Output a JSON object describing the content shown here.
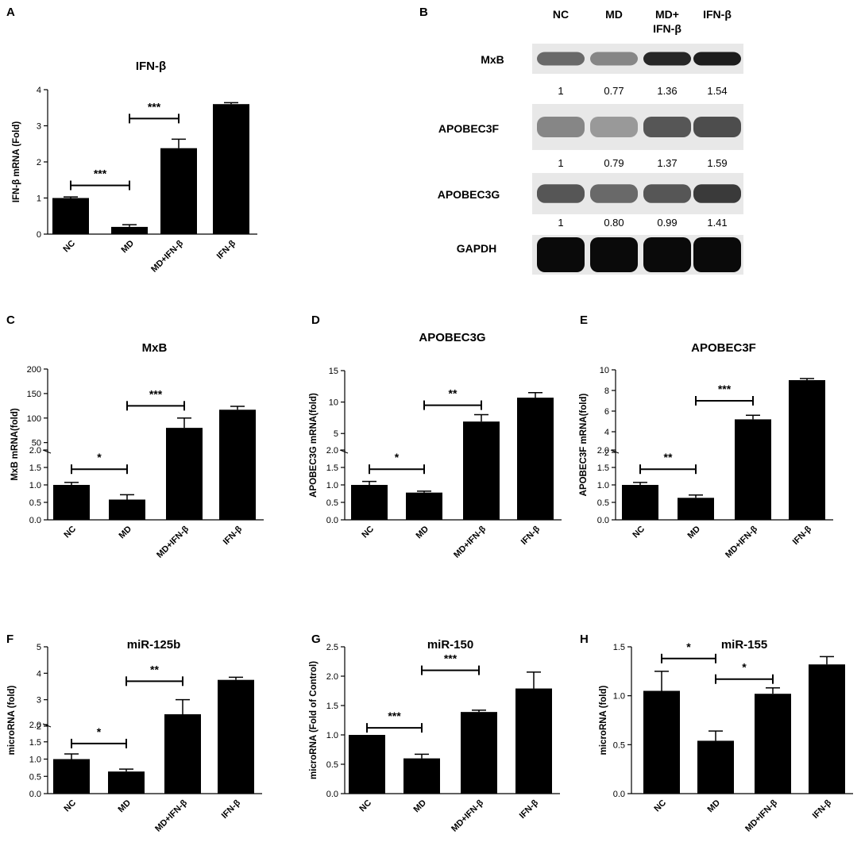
{
  "panels": [
    {
      "letter": "A",
      "title": "IFN-β",
      "ylabel": "IFN-β mRNA (Fold)"
    },
    {
      "letter": "B"
    },
    {
      "letter": "C",
      "title": "MxB",
      "ylabel": "MxB mRNA(fold)"
    },
    {
      "letter": "D",
      "title": "APOBEC3G",
      "ylabel": "APOBEC3G mRNA(fold)"
    },
    {
      "letter": "E",
      "title": "APOBEC3F",
      "ylabel": "APOBEC3F mRNA(fold)"
    },
    {
      "letter": "F",
      "title": "miR-125b",
      "ylabel": "microRNA (fold)"
    },
    {
      "letter": "G",
      "title": "miR-150",
      "ylabel": "microRNA (Fold of Control)"
    },
    {
      "letter": "H",
      "title": "miR-155",
      "ylabel": "microRNA (fold)"
    }
  ],
  "blot": {
    "lanes": [
      "NC",
      "MD",
      "MD+\nIFN-β",
      "IFN-β"
    ],
    "rows": [
      {
        "label": "MxB",
        "values": [
          "1",
          "0.77",
          "1.36",
          "1.54"
        ],
        "intensity": [
          0.5,
          0.35,
          0.85,
          0.9
        ]
      },
      {
        "label": "APOBEC3F",
        "values": [
          "1",
          "0.79",
          "1.37",
          "1.59"
        ],
        "intensity": [
          0.35,
          0.25,
          0.6,
          0.65
        ]
      },
      {
        "label": "APOBEC3G",
        "values": [
          "1",
          "0.80",
          "0.99",
          "1.41"
        ],
        "intensity": [
          0.6,
          0.5,
          0.6,
          0.75
        ]
      },
      {
        "label": "GAPDH",
        "values": [],
        "intensity": [
          1,
          1,
          1,
          1
        ]
      }
    ]
  },
  "chart_data": [
    {
      "id": "A",
      "type": "bar",
      "title": "IFN-β",
      "categories": [
        "NC",
        "MD",
        "MD+IFN-β",
        "IFN-β"
      ],
      "values": [
        1.0,
        0.2,
        2.38,
        3.6
      ],
      "errors": [
        0.03,
        0.06,
        0.25,
        0.04
      ],
      "ylabel": "IFN-β mRNA (Fold)",
      "ylim": [
        0,
        4
      ],
      "yticks": [
        0,
        1,
        2,
        3,
        4
      ],
      "significance": [
        {
          "from": 0,
          "to": 1,
          "label": "***",
          "y": 1.35
        },
        {
          "from": 1,
          "to": 2,
          "label": "***",
          "y": 3.2
        }
      ]
    },
    {
      "id": "C",
      "type": "bar",
      "title": "MxB",
      "categories": [
        "NC",
        "MD",
        "MD+IFN-β",
        "IFN-β"
      ],
      "values": [
        1.0,
        0.58,
        80,
        117
      ],
      "errors": [
        0.07,
        0.14,
        20,
        7
      ],
      "ylabel": "MxB mRNA(fold)",
      "broken_axis": true,
      "lower": {
        "ylim": [
          0,
          2
        ],
        "yticks": [
          "0.0",
          "0.5",
          "1.0",
          "1.5",
          "2.0"
        ]
      },
      "upper": {
        "ylim": [
          30,
          200
        ],
        "yticks": [
          "50",
          "100",
          "150",
          "200"
        ]
      },
      "significance": [
        {
          "from": 0,
          "to": 1,
          "label": "*",
          "seg": "lower",
          "y": 1.45
        },
        {
          "from": 1,
          "to": 2,
          "label": "***",
          "seg": "upper",
          "y": 125
        }
      ]
    },
    {
      "id": "D",
      "type": "bar",
      "title": "APOBEC3G",
      "categories": [
        "NC",
        "MD",
        "MD+IFN-β",
        "IFN-β"
      ],
      "values": [
        1.0,
        0.78,
        6.9,
        10.7
      ],
      "errors": [
        0.1,
        0.04,
        1.1,
        0.8
      ],
      "ylabel": "APOBEC3G mRNA(fold)",
      "broken_axis": true,
      "lower": {
        "ylim": [
          0,
          2
        ],
        "yticks": [
          "0.0",
          "0.5",
          "1.0",
          "1.5",
          "2.0"
        ]
      },
      "upper": {
        "ylim": [
          2,
          15
        ],
        "yticks": [
          "5",
          "10",
          "15"
        ]
      },
      "significance": [
        {
          "from": 0,
          "to": 1,
          "label": "*",
          "seg": "lower",
          "y": 1.45
        },
        {
          "from": 1,
          "to": 2,
          "label": "**",
          "seg": "upper",
          "y": 9.5
        }
      ]
    },
    {
      "id": "E",
      "type": "bar",
      "title": "APOBEC3F",
      "categories": [
        "NC",
        "MD",
        "MD+IFN-β",
        "IFN-β"
      ],
      "values": [
        1.0,
        0.63,
        5.2,
        9.0
      ],
      "errors": [
        0.07,
        0.08,
        0.4,
        0.15
      ],
      "ylabel": "APOBEC3F mRNA(fold)",
      "broken_axis": true,
      "lower": {
        "ylim": [
          0,
          2
        ],
        "yticks": [
          "0.0",
          "0.5",
          "1.0",
          "1.5",
          "2.0"
        ]
      },
      "upper": {
        "ylim": [
          2,
          10
        ],
        "yticks": [
          "2",
          "4",
          "6",
          "8",
          "10"
        ]
      },
      "significance": [
        {
          "from": 0,
          "to": 1,
          "label": "**",
          "seg": "lower",
          "y": 1.45
        },
        {
          "from": 1,
          "to": 2,
          "label": "***",
          "seg": "upper",
          "y": 7
        }
      ]
    },
    {
      "id": "F",
      "type": "bar",
      "title": "miR-125b",
      "categories": [
        "NC",
        "MD",
        "MD+IFN-β",
        "IFN-β"
      ],
      "values": [
        1.0,
        0.64,
        2.45,
        3.75
      ],
      "errors": [
        0.15,
        0.07,
        0.55,
        0.1
      ],
      "ylabel": "microRNA (fold)",
      "broken_axis": true,
      "lower": {
        "ylim": [
          0,
          2
        ],
        "yticks": [
          "0.0",
          "0.5",
          "1.0",
          "1.5",
          "2.0"
        ]
      },
      "upper": {
        "ylim": [
          2,
          5
        ],
        "yticks": [
          "2",
          "3",
          "4",
          "5"
        ]
      },
      "significance": [
        {
          "from": 0,
          "to": 1,
          "label": "*",
          "seg": "lower",
          "y": 1.45
        },
        {
          "from": 1,
          "to": 2,
          "label": "**",
          "seg": "upper",
          "y": 3.7
        }
      ]
    },
    {
      "id": "G",
      "type": "bar",
      "title": "miR-150",
      "categories": [
        "NC",
        "MD",
        "MD+IFN-β",
        "IFN-β"
      ],
      "values": [
        1.0,
        0.6,
        1.39,
        1.79
      ],
      "errors": [
        0.0,
        0.07,
        0.03,
        0.28
      ],
      "ylabel": "microRNA (Fold of Control)",
      "ylim": [
        0,
        2.5
      ],
      "yticks": [
        "0.0",
        "0.5",
        "1.0",
        "1.5",
        "2.0",
        "2.5"
      ],
      "significance": [
        {
          "from": 0,
          "to": 1,
          "label": "***",
          "y": 1.12
        },
        {
          "from": 1,
          "to": 2,
          "label": "***",
          "y": 2.1
        }
      ]
    },
    {
      "id": "H",
      "type": "bar",
      "title": "miR-155",
      "categories": [
        "NC",
        "MD",
        "MD+IFN-β",
        "IFN-β"
      ],
      "values": [
        1.05,
        0.54,
        1.02,
        1.32
      ],
      "errors": [
        0.2,
        0.1,
        0.06,
        0.08
      ],
      "ylabel": "microRNA (fold)",
      "ylim": [
        0,
        1.5
      ],
      "yticks": [
        "0.0",
        "0.5",
        "1.0",
        "1.5"
      ],
      "significance": [
        {
          "from": 0,
          "to": 1,
          "label": "*",
          "y": 1.38
        },
        {
          "from": 1,
          "to": 2,
          "label": "*",
          "y": 1.17
        }
      ]
    }
  ]
}
